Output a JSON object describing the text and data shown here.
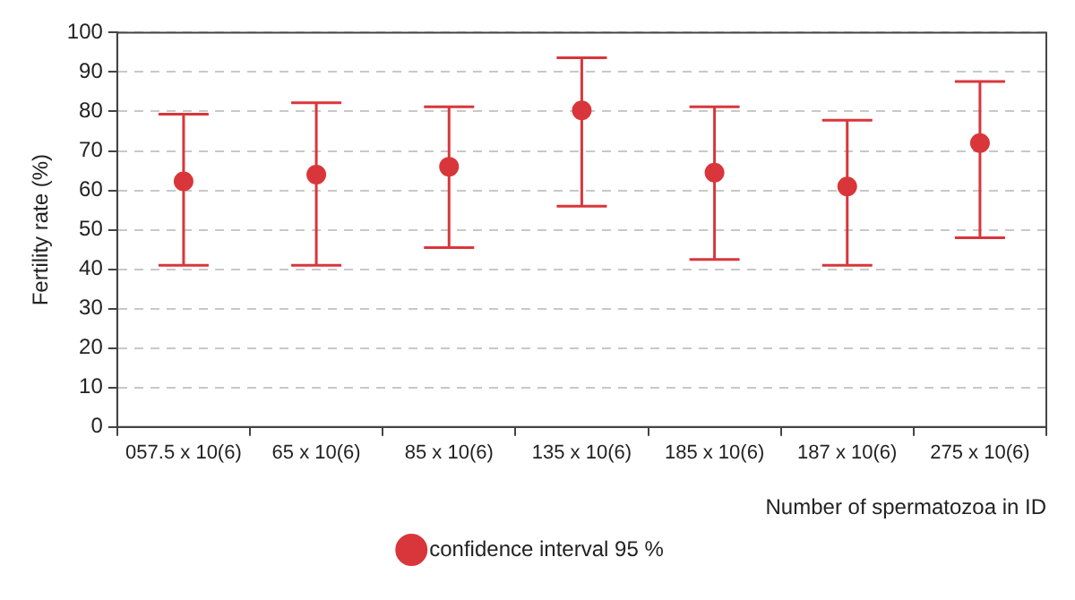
{
  "chart_data": {
    "type": "scatter",
    "xlabel": "Number of spermatozoa in ID",
    "ylabel": "Fertility rate (%)",
    "categories": [
      "057.5 x 10(6)",
      "65 x 10(6)",
      "85 x 10(6)",
      "135 x 10(6)",
      "185 x 10(6)",
      "187 x 10(6)",
      "275 x 10(6)"
    ],
    "series": [
      {
        "name": "confidence interval 95 %",
        "color": "#d9363b",
        "values": [
          62.3,
          64,
          66,
          80.3,
          64.5,
          61,
          72
        ],
        "errors": [
          [
            41,
            79.3
          ],
          [
            41,
            82.2
          ],
          [
            45.5,
            81.2
          ],
          [
            56,
            93.6
          ],
          [
            42.5,
            81.2
          ],
          [
            41,
            77.8
          ],
          [
            48,
            87.6
          ]
        ]
      }
    ],
    "ylim": [
      0,
      100
    ],
    "yticks": [
      0,
      10,
      20,
      30,
      40,
      50,
      60,
      70,
      80,
      90,
      100
    ],
    "grid": "y",
    "legend": "bottom",
    "marker": "circle"
  }
}
